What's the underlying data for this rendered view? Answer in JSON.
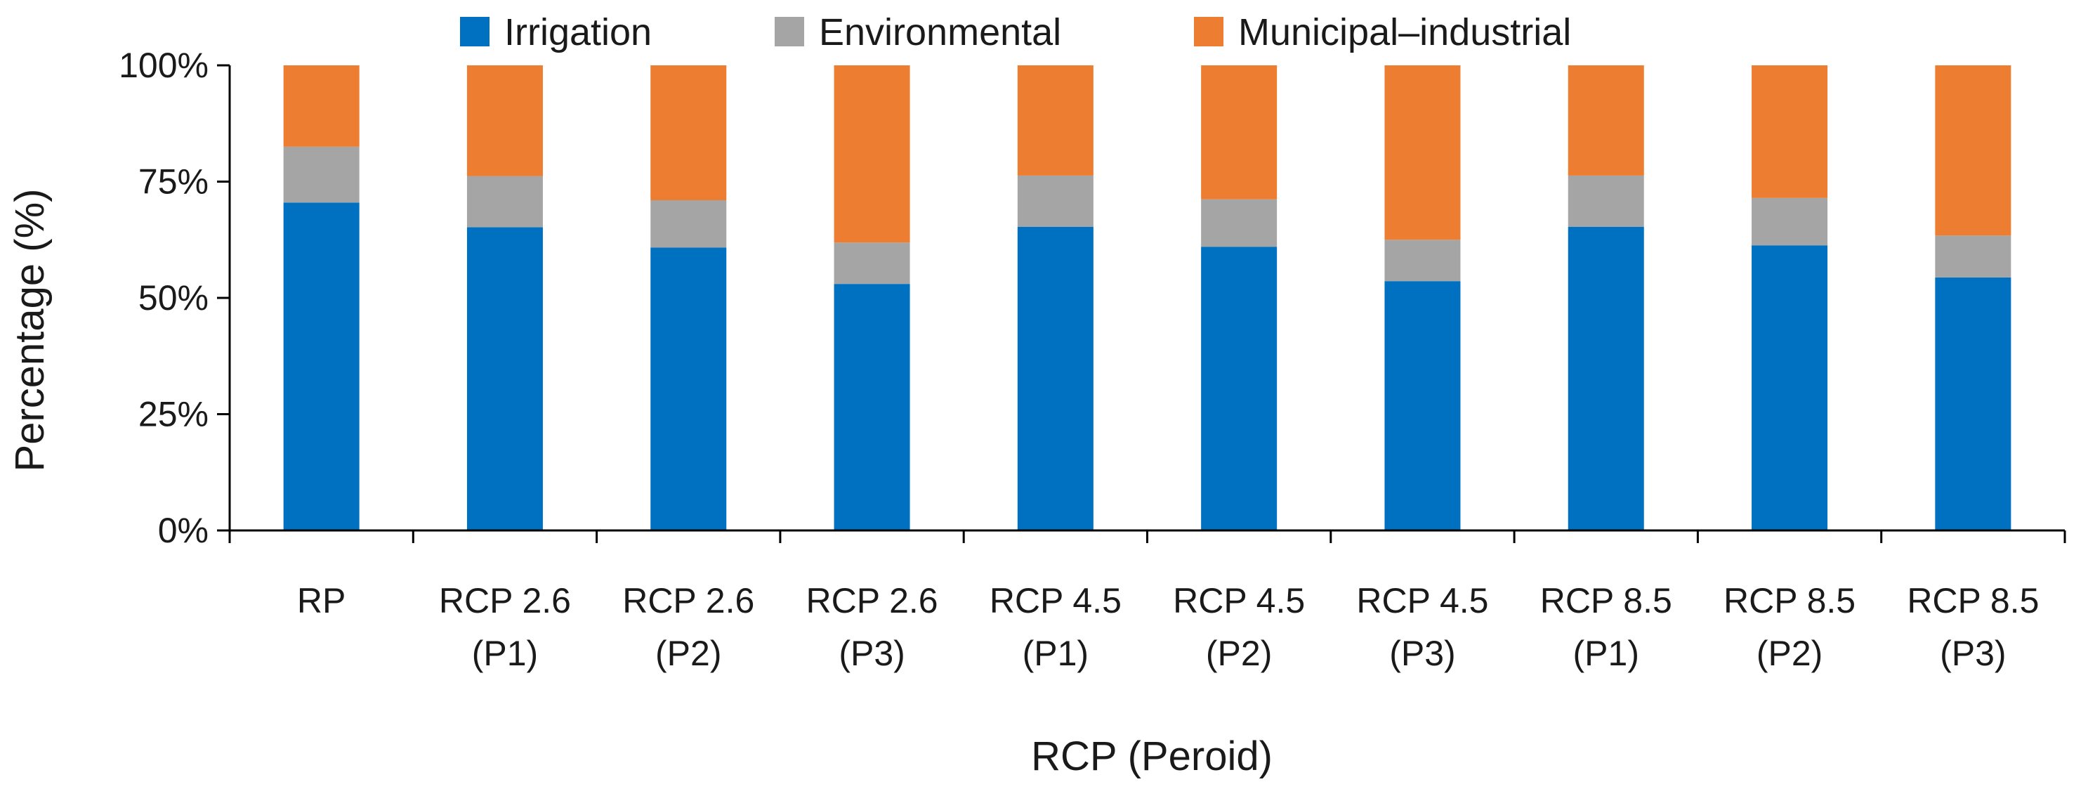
{
  "chart_data": {
    "type": "bar",
    "stacked": true,
    "normalized": true,
    "title": "",
    "xlabel": "RCP (Peroid)",
    "ylabel": "Percentage (%)",
    "ylim": [
      0,
      100
    ],
    "yticks": [
      "0%",
      "25%",
      "50%",
      "75%",
      "100%"
    ],
    "grid": false,
    "legend_position": "top",
    "categories": [
      [
        "RP"
      ],
      [
        "RCP 2.6",
        "(P1)"
      ],
      [
        "RCP 2.6",
        "(P2)"
      ],
      [
        "RCP 2.6",
        "(P3)"
      ],
      [
        "RCP 4.5",
        "(P1)"
      ],
      [
        "RCP 4.5",
        "(P2)"
      ],
      [
        "RCP 4.5",
        "(P3)"
      ],
      [
        "RCP 8.5",
        "(P1)"
      ],
      [
        "RCP 8.5",
        "(P2)"
      ],
      [
        "RCP 8.5",
        "(P3)"
      ]
    ],
    "series": [
      {
        "name": "Irrigation",
        "color": "#0070C0",
        "values": [
          70.5,
          65.2,
          60.8,
          53.0,
          65.3,
          61.0,
          53.6,
          65.3,
          61.3,
          54.4
        ]
      },
      {
        "name": "Environmental",
        "color": "#A5A5A5",
        "values": [
          12.0,
          11.0,
          10.2,
          8.9,
          11.0,
          10.2,
          8.9,
          11.0,
          10.2,
          9.0
        ]
      },
      {
        "name": "Municipal–industrial",
        "color": "#ED7D31",
        "values": [
          17.5,
          23.8,
          29.0,
          38.1,
          23.7,
          28.8,
          37.5,
          23.7,
          28.5,
          36.6
        ]
      }
    ]
  }
}
